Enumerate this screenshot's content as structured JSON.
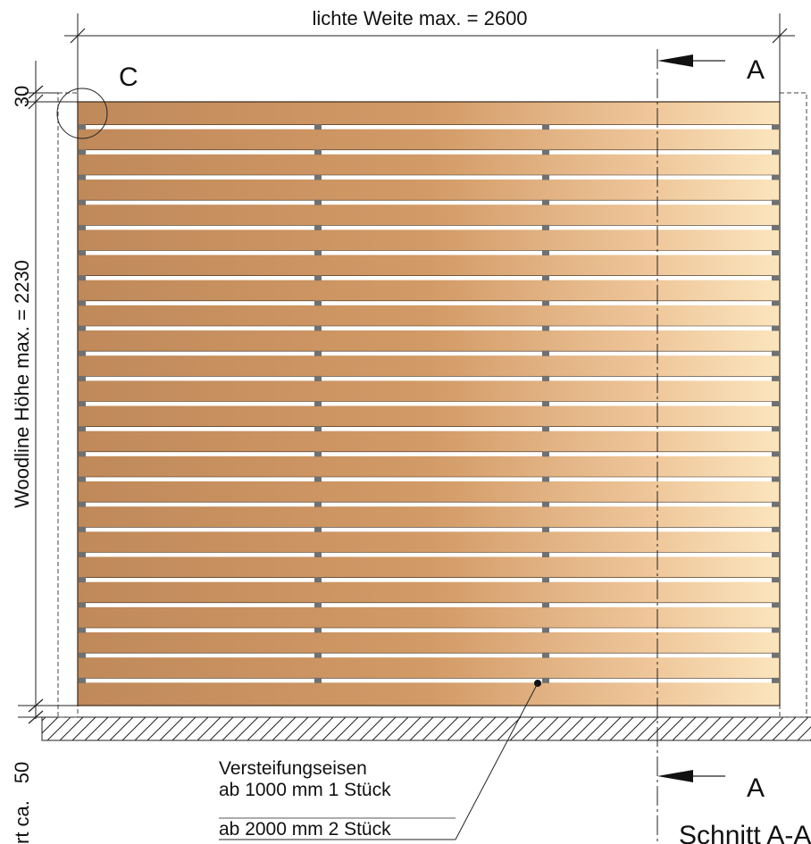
{
  "dimensions": {
    "width_label": "lichte Weite max. = 2600",
    "height_label": "Woodline Höhe max. =  2230",
    "top_gap": "30",
    "bottom_gap": "50",
    "bottom_gap_partial": "rt ca."
  },
  "markers": {
    "detail": "C",
    "section_top": "A",
    "section_bottom": "A",
    "section_title": "Schnitt A-A"
  },
  "callout": {
    "line1": "Versteifungseisen",
    "line2": "ab 1000 mm 1 Stück",
    "line3": "ab 2000 mm 2 Stück"
  },
  "panel": {
    "board_count": 24,
    "wood_color": "#c58f5f",
    "wood_highlight": "#fde9c0",
    "gap_color": "#ffffff",
    "bracket_color": "#707070"
  }
}
